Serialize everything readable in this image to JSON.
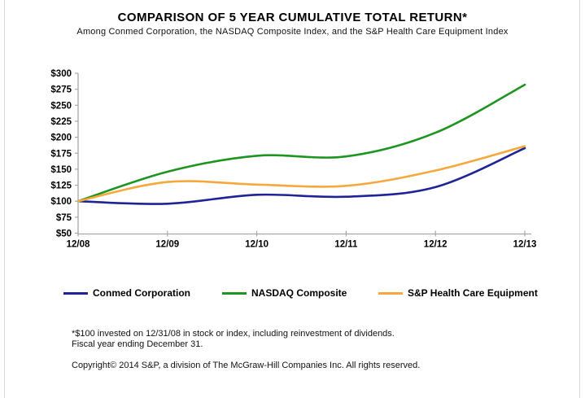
{
  "page": {
    "title": "COMPARISON OF 5 YEAR CUMULATIVE TOTAL RETURN*",
    "subtitle": "Among Conmed Corporation, the NASDAQ Composite Index, and the S&P Health Care Equipment Index"
  },
  "chart_data": {
    "type": "line",
    "title": "COMPARISON OF 5 YEAR CUMULATIVE TOTAL RETURN*",
    "subtitle": "Among Conmed Corporation, the NASDAQ Composite Index, and the S&P Health Care Equipment Index",
    "x_categories": [
      "12/08",
      "12/09",
      "12/10",
      "12/11",
      "12/12",
      "12/13"
    ],
    "y_ticks": [
      50,
      75,
      100,
      125,
      150,
      175,
      200,
      225,
      250,
      275,
      300
    ],
    "y_tick_prefix": "$",
    "ylim": [
      50,
      300
    ],
    "grid": false,
    "legend_position": "bottom",
    "axis_color": "#a8a8a8",
    "series": [
      {
        "name": "Conmed Corporation",
        "color": "#1e2396",
        "values": [
          100,
          96,
          110,
          107,
          122,
          183
        ]
      },
      {
        "name": "NASDAQ Composite",
        "color": "#1e9421",
        "values": [
          100,
          146,
          171,
          170,
          207,
          282
        ]
      },
      {
        "name": "S&P Health Care Equipment",
        "color": "#f5a83c",
        "values": [
          100,
          130,
          126,
          124,
          148,
          186
        ]
      }
    ]
  },
  "footnotes": {
    "line1": "*$100 invested on 12/31/08 in stock or index, including reinvestment of dividends.",
    "line2": "Fiscal year ending December 31.",
    "copyright": "Copyright© 2014 S&P, a division of The McGraw-Hill Companies Inc. All rights reserved."
  }
}
